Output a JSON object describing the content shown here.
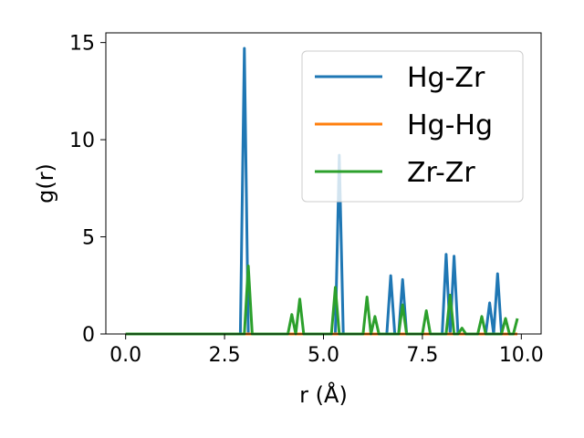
{
  "chart_data": {
    "type": "line",
    "xlabel": "r (Å)",
    "ylabel": "g(r)",
    "xlim": [
      -0.5,
      10.5
    ],
    "ylim": [
      0,
      15.5
    ],
    "xticks": [
      0.0,
      2.5,
      5.0,
      7.5,
      10.0
    ],
    "xtick_labels": [
      "0.0",
      "2.5",
      "5.0",
      "7.5",
      "10.0"
    ],
    "yticks": [
      0,
      5,
      10,
      15
    ],
    "ytick_labels": [
      "0",
      "5",
      "10",
      "15"
    ],
    "grid": false,
    "legend_position": "top-right",
    "series": [
      {
        "name": "Hg-Zr",
        "color": "#1f77b4",
        "x": [
          0.0,
          2.9,
          3.0,
          3.1,
          5.3,
          5.4,
          5.5,
          6.6,
          6.7,
          6.8,
          6.9,
          7.0,
          7.1,
          8.0,
          8.1,
          8.2,
          8.3,
          8.4,
          9.1,
          9.2,
          9.3,
          9.4,
          9.5,
          9.9
        ],
        "y": [
          0.0,
          0.0,
          14.7,
          0.0,
          0.0,
          9.2,
          0.0,
          0.0,
          3.0,
          0.0,
          0.0,
          2.8,
          0.0,
          0.0,
          4.1,
          0.0,
          4.0,
          0.0,
          0.0,
          1.6,
          0.0,
          3.1,
          0.0,
          0.0
        ]
      },
      {
        "name": "Hg-Hg",
        "color": "#ff7f0e",
        "x": [
          0.0,
          9.9
        ],
        "y": [
          0.0,
          0.0
        ]
      },
      {
        "name": "Zr-Zr",
        "color": "#2ca02c",
        "x": [
          0.0,
          3.0,
          3.1,
          3.2,
          4.1,
          4.2,
          4.3,
          4.4,
          4.5,
          5.2,
          5.3,
          5.4,
          6.0,
          6.1,
          6.2,
          6.3,
          6.4,
          6.9,
          7.0,
          7.1,
          7.5,
          7.6,
          7.7,
          8.1,
          8.2,
          8.3,
          8.4,
          8.5,
          8.6,
          8.9,
          9.0,
          9.1,
          9.5,
          9.6,
          9.7,
          9.8,
          9.9
        ],
        "y": [
          0.0,
          0.0,
          3.5,
          0.0,
          0.0,
          1.0,
          0.0,
          1.8,
          0.0,
          0.0,
          2.4,
          0.0,
          0.0,
          1.9,
          0.0,
          0.9,
          0.0,
          0.0,
          1.5,
          0.0,
          0.0,
          1.2,
          0.0,
          0.0,
          2.0,
          0.0,
          0.0,
          0.3,
          0.0,
          0.0,
          0.9,
          0.0,
          0.0,
          0.8,
          0.0,
          0.0,
          0.8
        ]
      }
    ]
  }
}
